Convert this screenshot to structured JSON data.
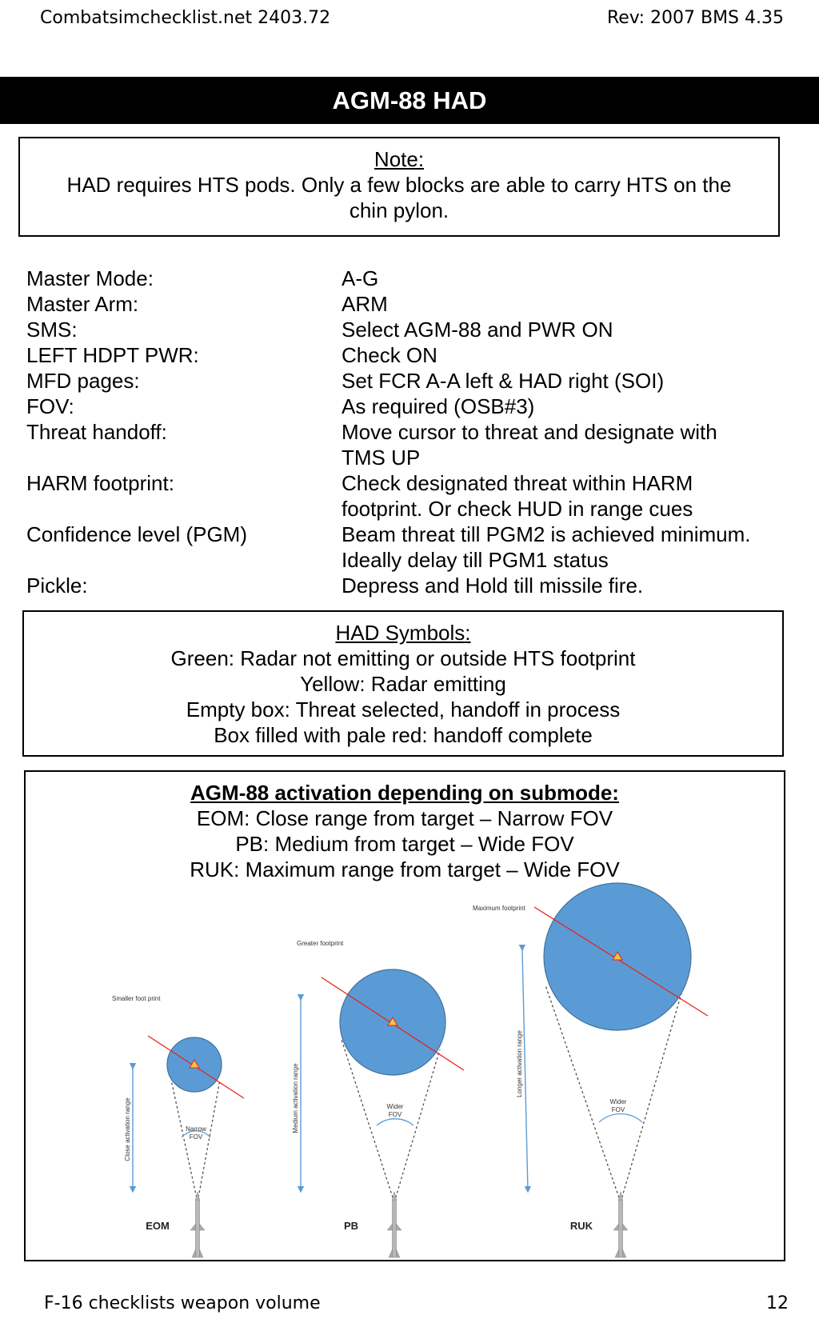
{
  "header": {
    "left": "Combatsimchecklist.net 2403.72",
    "right": "Rev: 2007 BMS 4.35"
  },
  "title": "AGM-88 HAD",
  "note": {
    "heading": "Note:",
    "line1": "HAD requires HTS pods. Only a few blocks are able to carry HTS on the",
    "line2": "chin pylon."
  },
  "checklist": [
    {
      "item": "Master Mode:",
      "action": "A-G",
      "action2": ""
    },
    {
      "item": "Master Arm:",
      "action": "ARM",
      "action2": ""
    },
    {
      "item": "SMS:",
      "action": "Select AGM-88 and PWR ON",
      "action2": ""
    },
    {
      "item": "LEFT HDPT PWR:",
      "action": "Check ON",
      "action2": ""
    },
    {
      "item": "MFD pages:",
      "action": "Set FCR A-A left & HAD right (SOI)",
      "action2": ""
    },
    {
      "item": "FOV:",
      "action": "As required (OSB#3)",
      "action2": ""
    },
    {
      "item": "Threat handoff:",
      "action": "Move cursor to threat and designate with",
      "action2": "TMS UP"
    },
    {
      "item": "HARM footprint:",
      "action": "Check designated threat within HARM",
      "action2": "footprint. Or check HUD in range cues"
    },
    {
      "item": "Confidence level (PGM)",
      "action": "Beam threat till PGM2 is achieved minimum.",
      "action2": "Ideally delay till PGM1 status"
    },
    {
      "item": "Pickle:",
      "action": "Depress and Hold till missile fire.",
      "action2": ""
    }
  ],
  "had_symbols": {
    "heading": "HAD Symbols:",
    "lines": [
      "Green: Radar not emitting or outside HTS footprint",
      "Yellow: Radar emitting",
      "Empty box: Threat selected, handoff in process",
      "Box filled with pale red: handoff complete"
    ]
  },
  "activation": {
    "heading": "AGM-88 activation depending on submode:",
    "lines": [
      "EOM: Close range from target – Narrow FOV",
      "PB: Medium from target – Wide FOV",
      "RUK: Maximum range from target – Wide FOV"
    ]
  },
  "diagram": {
    "footprint_color": "#5b9bd5",
    "line_color": "#e8221b",
    "arrow_color": "#5b9bd5",
    "eom": {
      "label": "EOM",
      "footprint": "Smaller foot print",
      "range": "Close activation range",
      "fov_l1": "Narrow",
      "fov_l2": "FOV"
    },
    "pb": {
      "label": "PB",
      "footprint": "Greater footprint",
      "range": "Medium activation range",
      "fov_l1": "Wider",
      "fov_l2": "FOV"
    },
    "ruk": {
      "label": "RUK",
      "footprint": "Maximum footprint",
      "range": "Longer activation range",
      "fov_l1": "Wider",
      "fov_l2": "FOV"
    }
  },
  "footer": {
    "left": "F-16 checklists weapon volume",
    "right": "12"
  }
}
